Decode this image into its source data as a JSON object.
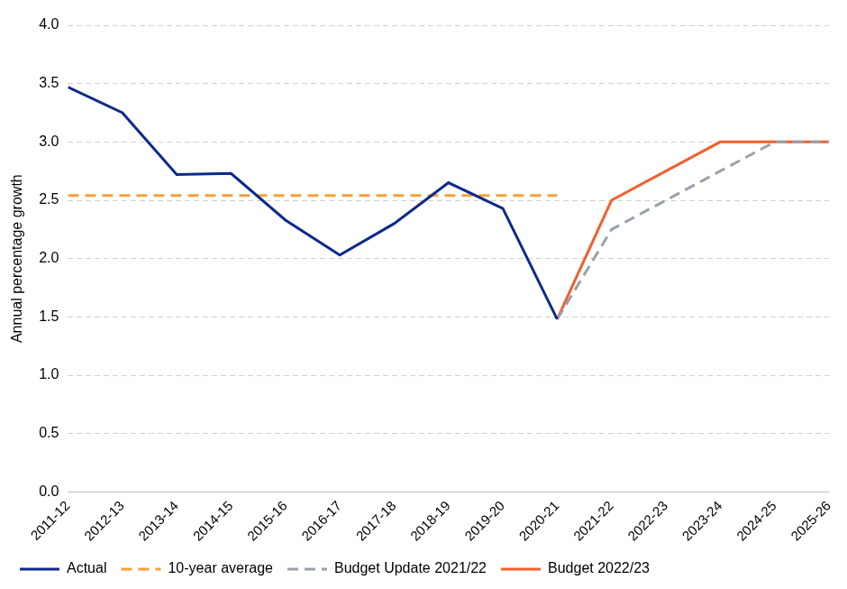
{
  "chart_data": {
    "type": "line",
    "y_label": "Annual percentage growth",
    "categories": [
      "2011-12",
      "2012-13",
      "2013-14",
      "2014-15",
      "2015-16",
      "2016-17",
      "2017-18",
      "2018-19",
      "2019-20",
      "2020-21",
      "2021-22",
      "2022-23",
      "2023-24",
      "2024-25",
      "2025-26"
    ],
    "series": [
      {
        "name": "Actual",
        "color": "#0d2a8a",
        "line_style": "solid",
        "values": [
          3.47,
          3.25,
          2.72,
          2.73,
          2.33,
          2.03,
          2.3,
          2.65,
          2.43,
          1.48,
          null,
          null,
          null,
          null,
          null
        ]
      },
      {
        "name": "10-year average",
        "color": "#f2a23a",
        "line_style": "dashed",
        "values": [
          2.54,
          2.54,
          2.54,
          2.54,
          2.54,
          2.54,
          2.54,
          2.54,
          2.54,
          2.54,
          null,
          null,
          null,
          null,
          null
        ]
      },
      {
        "name": "Budget Update 2021/22",
        "color": "#99a1aa",
        "line_style": "dashed",
        "values": [
          null,
          null,
          null,
          null,
          null,
          null,
          null,
          null,
          null,
          1.48,
          2.25,
          2.5,
          2.75,
          3.0,
          3.0
        ]
      },
      {
        "name": "Budget 2022/23",
        "color": "#f0602f",
        "line_style": "solid",
        "values": [
          null,
          null,
          null,
          null,
          null,
          null,
          null,
          null,
          null,
          1.48,
          2.5,
          2.75,
          3.0,
          3.0,
          3.0
        ]
      }
    ],
    "ylim": [
      0,
      4
    ],
    "yticks": [
      {
        "value": 0,
        "label": "0.0"
      },
      {
        "value": 0.5,
        "label": "0.5"
      },
      {
        "value": 1,
        "label": "1.0"
      },
      {
        "value": 1.5,
        "label": "1.5"
      },
      {
        "value": 2,
        "label": "2.0"
      },
      {
        "value": 2.5,
        "label": "2.5"
      },
      {
        "value": 3,
        "label": "3.0"
      },
      {
        "value": 3.5,
        "label": "3.5"
      },
      {
        "value": 4,
        "label": "4.0"
      }
    ],
    "grid": true,
    "legend": "bottom"
  }
}
